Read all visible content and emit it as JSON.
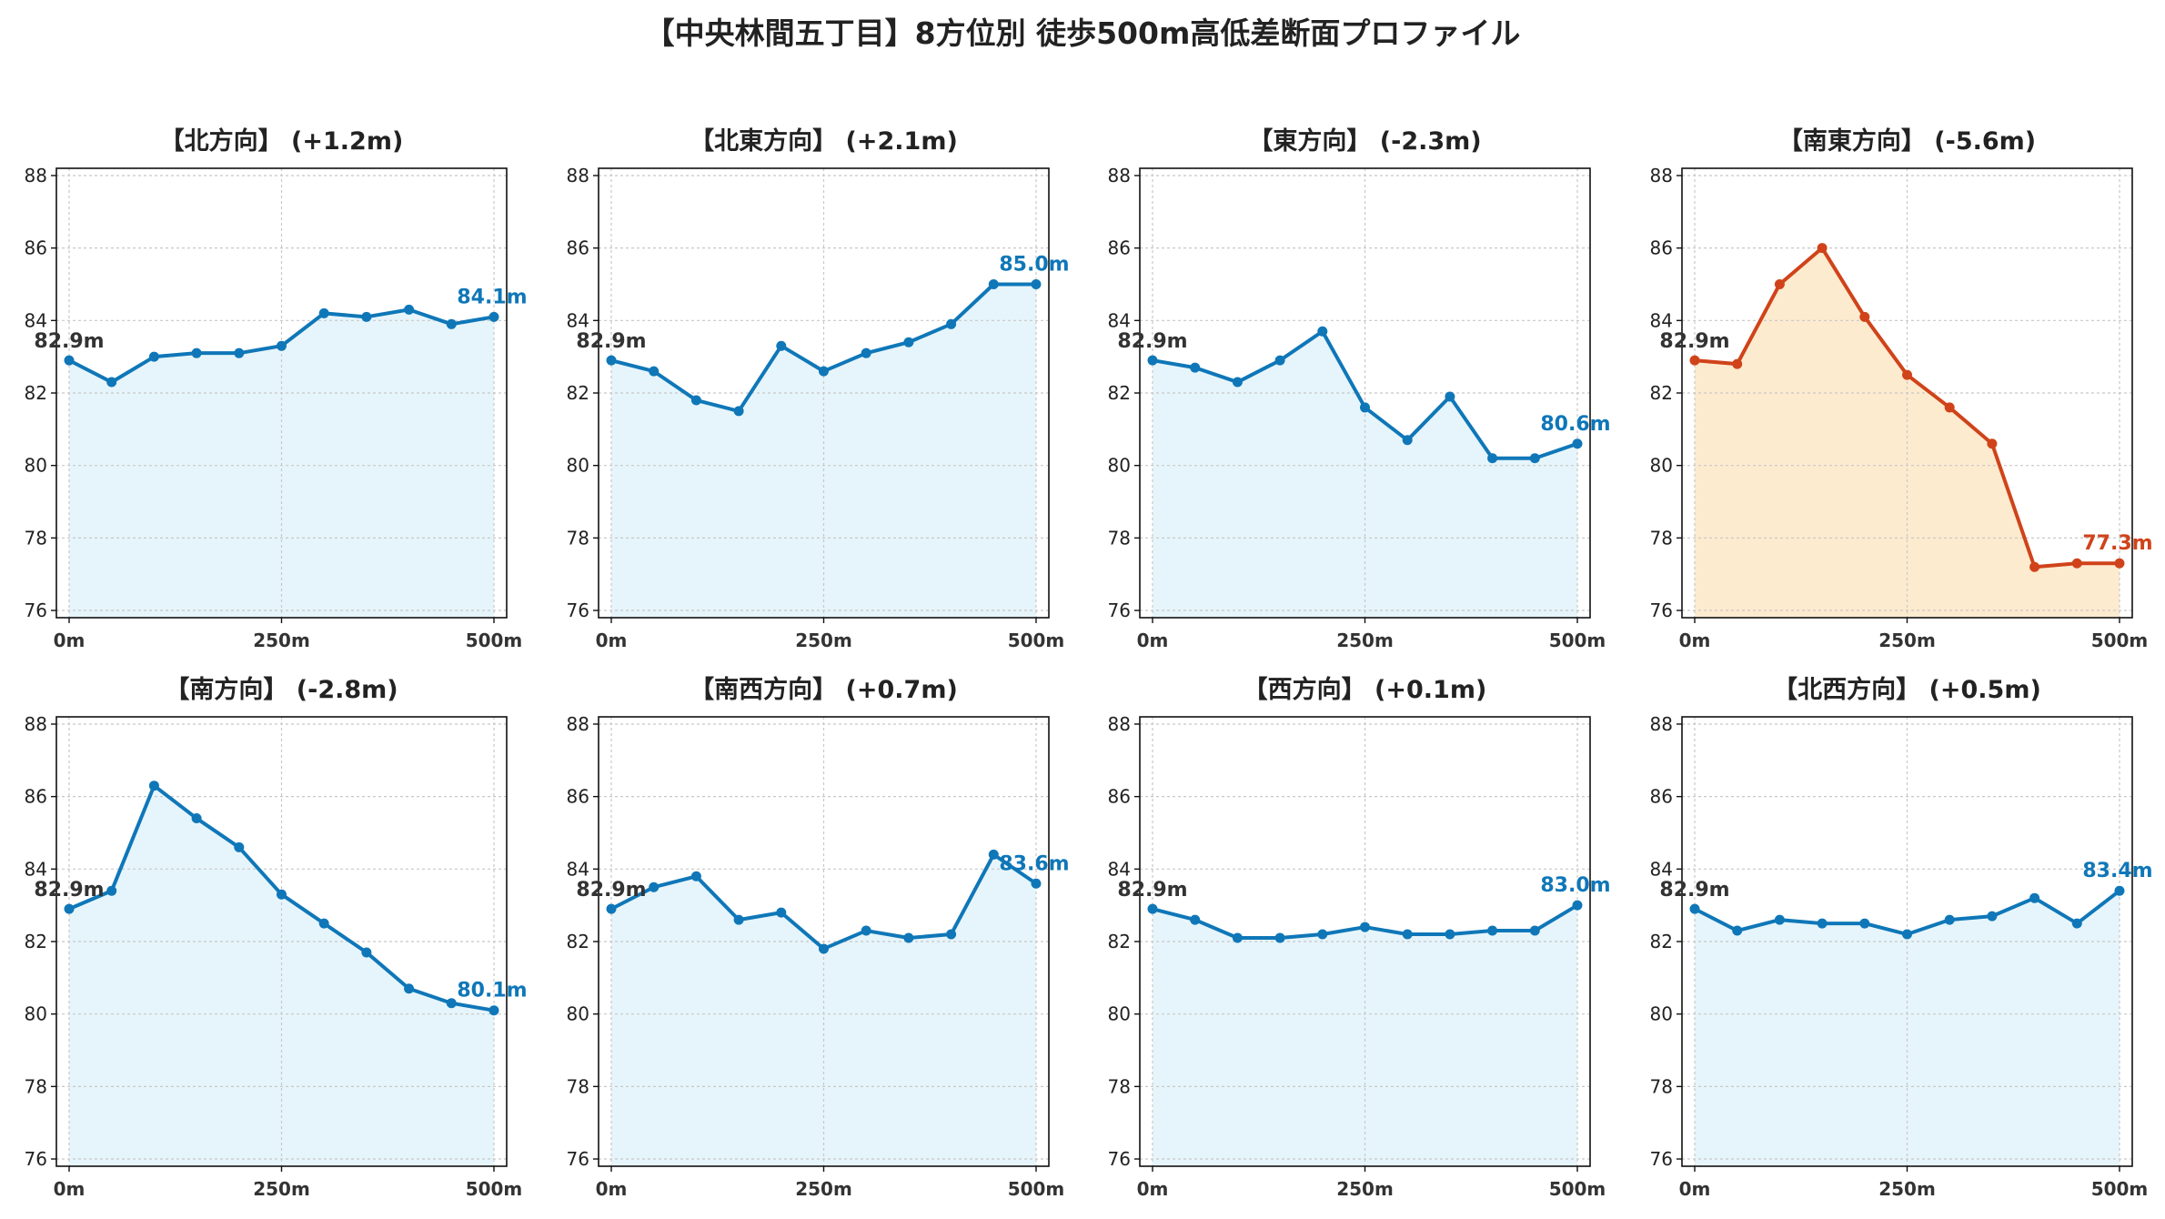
{
  "title": "【中央林間五丁目】8方位別 徒歩500m高低差断面プロファイル",
  "colors": {
    "normal_line": "#0f77b8",
    "normal_fill": "#e6f5fb",
    "highlight_line": "#d0431a",
    "highlight_fill": "#fdebcf",
    "start_label": "#333333",
    "grid": "#c8c8c8"
  },
  "chart_data": [
    {
      "type": "area",
      "title": "【北方向】 (+1.2m)",
      "x": [
        0,
        50,
        100,
        150,
        200,
        250,
        300,
        350,
        400,
        450,
        500
      ],
      "x_ticks": [
        "0m",
        "250m",
        "500m"
      ],
      "x_tick_values": [
        0,
        250,
        500
      ],
      "y_ticks": [
        76,
        78,
        80,
        82,
        84,
        86,
        88
      ],
      "xlim": [
        -15,
        515
      ],
      "ylim": [
        75.8,
        88.2
      ],
      "values": [
        82.9,
        82.3,
        83.0,
        83.1,
        83.1,
        83.3,
        84.2,
        84.1,
        84.3,
        83.9,
        84.1
      ],
      "start_label": "82.9m",
      "end_label": "84.1m",
      "highlight": false,
      "grid": true
    },
    {
      "type": "area",
      "title": "【北東方向】 (+2.1m)",
      "x": [
        0,
        50,
        100,
        150,
        200,
        250,
        300,
        350,
        400,
        450,
        500
      ],
      "x_ticks": [
        "0m",
        "250m",
        "500m"
      ],
      "x_tick_values": [
        0,
        250,
        500
      ],
      "y_ticks": [
        76,
        78,
        80,
        82,
        84,
        86,
        88
      ],
      "xlim": [
        -15,
        515
      ],
      "ylim": [
        75.8,
        88.2
      ],
      "values": [
        82.9,
        82.6,
        81.8,
        81.5,
        83.3,
        82.6,
        83.1,
        83.4,
        83.9,
        85.0,
        85.0
      ],
      "start_label": "82.9m",
      "end_label": "85.0m",
      "highlight": false,
      "grid": true
    },
    {
      "type": "area",
      "title": "【東方向】 (-2.3m)",
      "x": [
        0,
        50,
        100,
        150,
        200,
        250,
        300,
        350,
        400,
        450,
        500
      ],
      "x_ticks": [
        "0m",
        "250m",
        "500m"
      ],
      "x_tick_values": [
        0,
        250,
        500
      ],
      "y_ticks": [
        76,
        78,
        80,
        82,
        84,
        86,
        88
      ],
      "xlim": [
        -15,
        515
      ],
      "ylim": [
        75.8,
        88.2
      ],
      "values": [
        82.9,
        82.7,
        82.3,
        82.9,
        83.7,
        81.6,
        80.7,
        81.9,
        80.2,
        80.2,
        80.6
      ],
      "start_label": "82.9m",
      "end_label": "80.6m",
      "highlight": false,
      "grid": true
    },
    {
      "type": "area",
      "title": "【南東方向】 (-5.6m)",
      "x": [
        0,
        50,
        100,
        150,
        200,
        250,
        300,
        350,
        400,
        450,
        500
      ],
      "x_ticks": [
        "0m",
        "250m",
        "500m"
      ],
      "x_tick_values": [
        0,
        250,
        500
      ],
      "y_ticks": [
        76,
        78,
        80,
        82,
        84,
        86,
        88
      ],
      "xlim": [
        -15,
        515
      ],
      "ylim": [
        75.8,
        88.2
      ],
      "values": [
        82.9,
        82.8,
        85.0,
        86.0,
        84.1,
        82.5,
        81.6,
        80.6,
        77.2,
        77.3,
        77.3
      ],
      "start_label": "82.9m",
      "end_label": "77.3m",
      "highlight": true,
      "grid": true
    },
    {
      "type": "area",
      "title": "【南方向】 (-2.8m)",
      "x": [
        0,
        50,
        100,
        150,
        200,
        250,
        300,
        350,
        400,
        450,
        500
      ],
      "x_ticks": [
        "0m",
        "250m",
        "500m"
      ],
      "x_tick_values": [
        0,
        250,
        500
      ],
      "y_ticks": [
        76,
        78,
        80,
        82,
        84,
        86,
        88
      ],
      "xlim": [
        -15,
        515
      ],
      "ylim": [
        75.8,
        88.2
      ],
      "values": [
        82.9,
        83.4,
        86.3,
        85.4,
        84.6,
        83.3,
        82.5,
        81.7,
        80.7,
        80.3,
        80.1
      ],
      "start_label": "82.9m",
      "end_label": "80.1m",
      "highlight": false,
      "grid": true
    },
    {
      "type": "area",
      "title": "【南西方向】 (+0.7m)",
      "x": [
        0,
        50,
        100,
        150,
        200,
        250,
        300,
        350,
        400,
        450,
        500
      ],
      "x_ticks": [
        "0m",
        "250m",
        "500m"
      ],
      "x_tick_values": [
        0,
        250,
        500
      ],
      "y_ticks": [
        76,
        78,
        80,
        82,
        84,
        86,
        88
      ],
      "xlim": [
        -15,
        515
      ],
      "ylim": [
        75.8,
        88.2
      ],
      "values": [
        82.9,
        83.5,
        83.8,
        82.6,
        82.8,
        81.8,
        82.3,
        82.1,
        82.2,
        84.4,
        83.6
      ],
      "start_label": "82.9m",
      "end_label": "83.6m",
      "highlight": false,
      "grid": true
    },
    {
      "type": "area",
      "title": "【西方向】 (+0.1m)",
      "x": [
        0,
        50,
        100,
        150,
        200,
        250,
        300,
        350,
        400,
        450,
        500
      ],
      "x_ticks": [
        "0m",
        "250m",
        "500m"
      ],
      "x_tick_values": [
        0,
        250,
        500
      ],
      "y_ticks": [
        76,
        78,
        80,
        82,
        84,
        86,
        88
      ],
      "xlim": [
        -15,
        515
      ],
      "ylim": [
        75.8,
        88.2
      ],
      "values": [
        82.9,
        82.6,
        82.1,
        82.1,
        82.2,
        82.4,
        82.2,
        82.2,
        82.3,
        82.3,
        83.0
      ],
      "start_label": "82.9m",
      "end_label": "83.0m",
      "highlight": false,
      "grid": true
    },
    {
      "type": "area",
      "title": "【北西方向】 (+0.5m)",
      "x": [
        0,
        50,
        100,
        150,
        200,
        250,
        300,
        350,
        400,
        450,
        500
      ],
      "x_ticks": [
        "0m",
        "250m",
        "500m"
      ],
      "x_tick_values": [
        0,
        250,
        500
      ],
      "y_ticks": [
        76,
        78,
        80,
        82,
        84,
        86,
        88
      ],
      "xlim": [
        -15,
        515
      ],
      "ylim": [
        75.8,
        88.2
      ],
      "values": [
        82.9,
        82.3,
        82.6,
        82.5,
        82.5,
        82.2,
        82.6,
        82.7,
        83.2,
        82.5,
        83.4
      ],
      "start_label": "82.9m",
      "end_label": "83.4m",
      "highlight": false,
      "grid": true
    }
  ]
}
